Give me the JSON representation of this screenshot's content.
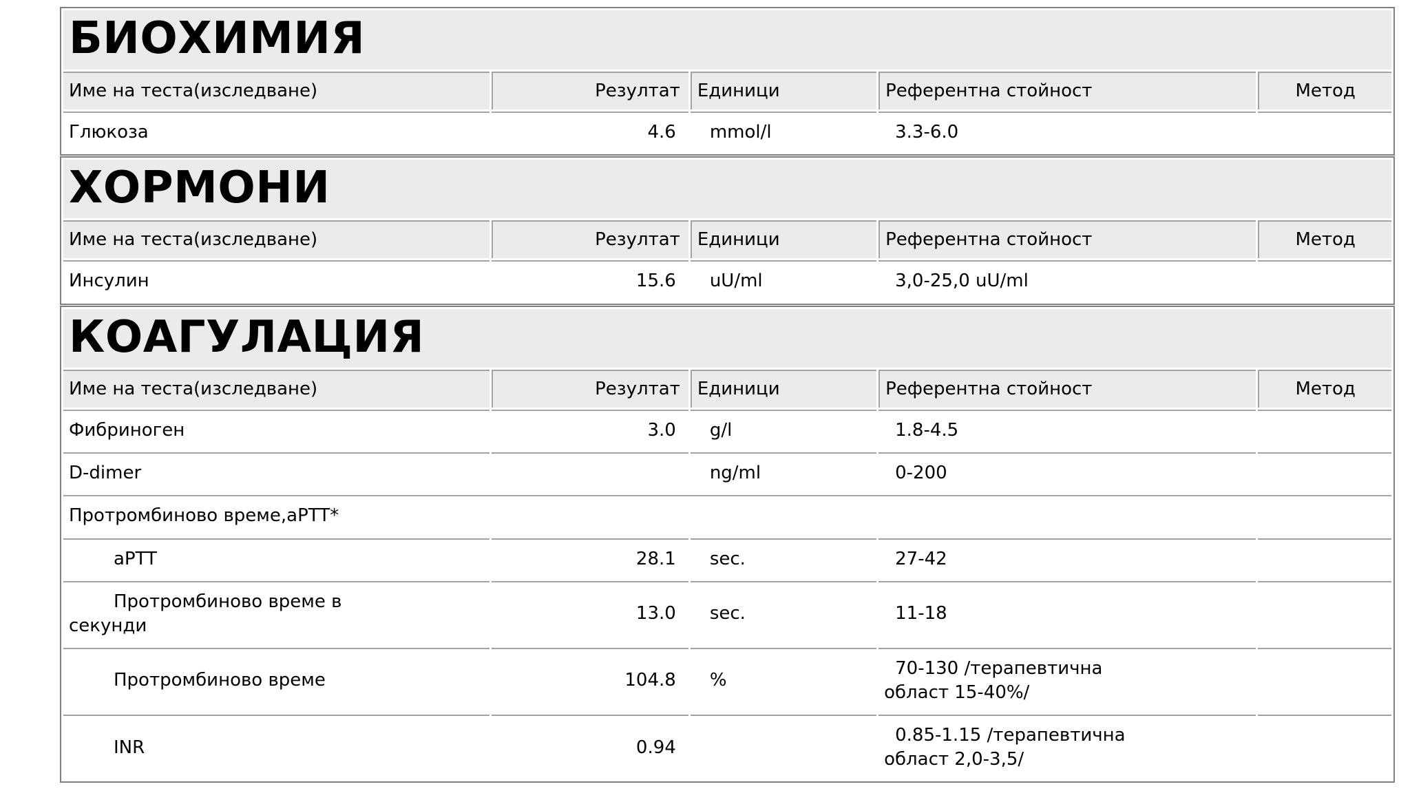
{
  "report": {
    "columns": {
      "name": "Име на теста(изследване)",
      "result": "Резултат",
      "units": "Единици",
      "reference": "Референтна стойност",
      "method": "Метод"
    },
    "sections": [
      {
        "title": "БИОХИМИЯ",
        "rows": [
          {
            "name": "Глюкоза",
            "result": "4.6",
            "units": "mmol/l",
            "reference": "3.3-6.0",
            "method": ""
          }
        ]
      },
      {
        "title": "ХОРМОНИ",
        "rows": [
          {
            "name": "Инсулин",
            "result": "15.6",
            "units": "uU/ml",
            "reference": "3,0-25,0 uU/ml",
            "method": ""
          }
        ]
      },
      {
        "title": "КОАГУЛАЦИЯ",
        "rows": [
          {
            "name": "Фибриноген",
            "result": "3.0",
            "units": "g/l",
            "reference": "1.8-4.5",
            "method": ""
          },
          {
            "name": "D-dimer",
            "result": "",
            "units": "ng/ml",
            "reference": "0-200",
            "method": ""
          },
          {
            "name": "Протромбиново време,aPTT*"
          },
          {
            "name": "aPTT",
            "result": "28.1",
            "units": "sec.",
            "reference": "27-42",
            "method": ""
          },
          {
            "name": "Протромбиново време в секунди",
            "result": "13.0",
            "units": "sec.",
            "reference": "11-18",
            "method": ""
          },
          {
            "name": "Протромбиново време",
            "result": "104.8",
            "units": "%",
            "reference": "70-130 /терапевтична област 15-40%/",
            "method": ""
          },
          {
            "name": "INR",
            "result": "0.94",
            "units": "",
            "reference": "0.85-1.15 /терапевтична област 2,0-3,5/",
            "method": ""
          }
        ]
      }
    ]
  }
}
